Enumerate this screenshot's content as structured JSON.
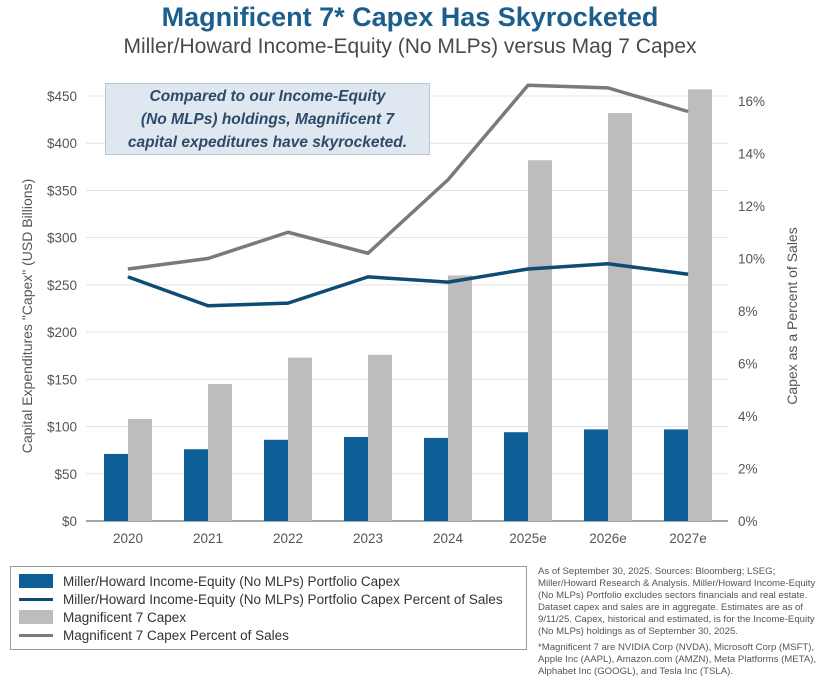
{
  "title": "Magnificent 7* Capex Has Skyrocketed",
  "subtitle": "Miller/Howard Income-Equity (No MLPs) versus Mag 7 Capex",
  "callout": [
    "Compared to our Income-Equity",
    "(No MLPs) holdings, Magnificent 7",
    "capital expeditures have skyrocketed."
  ],
  "chart_data": {
    "type": "bar",
    "categories": [
      "2020",
      "2021",
      "2022",
      "2023",
      "2024",
      "2025e",
      "2026e",
      "2027e"
    ],
    "ylabel": "Capital Expenditures \"Capex\" (USD Billions)",
    "y2label": "Capex as a Percent of Sales",
    "ylim": [
      0,
      470
    ],
    "y2lim": [
      0,
      17.9
    ],
    "yticks": [
      "$0",
      "$50",
      "$100",
      "$150",
      "$200",
      "$250",
      "$300",
      "$350",
      "$400",
      "$450"
    ],
    "y2ticks": [
      "0%",
      "2%",
      "4%",
      "6%",
      "8%",
      "10%",
      "12%",
      "14%",
      "16%"
    ],
    "grid": true,
    "series": [
      {
        "name": "Miller/Howard Income-Equity (No MLPs) Portfolio Capex",
        "type": "bar",
        "axis": "left",
        "color": "#0e5f97",
        "values": [
          71,
          76,
          86,
          89,
          88,
          94,
          97,
          97
        ]
      },
      {
        "name": "Magnificent 7 Capex",
        "type": "bar",
        "axis": "left",
        "color": "#bdbdbd",
        "values": [
          108,
          145,
          173,
          176,
          260,
          382,
          432,
          457
        ]
      },
      {
        "name": "Miller/Howard Income-Equity (No MLPs) Portfolio Capex Percent of Sales",
        "type": "line",
        "axis": "right",
        "color": "#0d4c73",
        "values": [
          9.3,
          8.2,
          8.3,
          9.3,
          9.1,
          9.6,
          9.8,
          9.4
        ]
      },
      {
        "name": "Magnificent 7 Capex Percent of Sales",
        "type": "line",
        "axis": "right",
        "color": "#7a7a7a",
        "values": [
          9.6,
          10.0,
          11.0,
          10.2,
          13.0,
          16.6,
          16.5,
          15.6
        ]
      }
    ],
    "legend_position": "bottom-left"
  },
  "notes": [
    "As of September 30, 2025. Sources: Bloomberg; LSEG; Miller/Howard Research & Analysis. Miller/Howard Income-Equity (No MLPs) Portfolio excludes sectors financials and real estate. Dataset capex and sales are in aggregate. Estimates are as of 9/11/25. Capex, historical and estimated, is for the Income-Equity (No MLPs) holdings as of September 30, 2025.",
    "*Magnificent 7 are NVIDIA Corp (NVDA), Microsoft Corp (MSFT), Apple Inc (AAPL), Amazon.com (AMZN), Meta Platforms (META), Alphabet Inc (GOOGL), and Tesla Inc (TSLA)."
  ]
}
